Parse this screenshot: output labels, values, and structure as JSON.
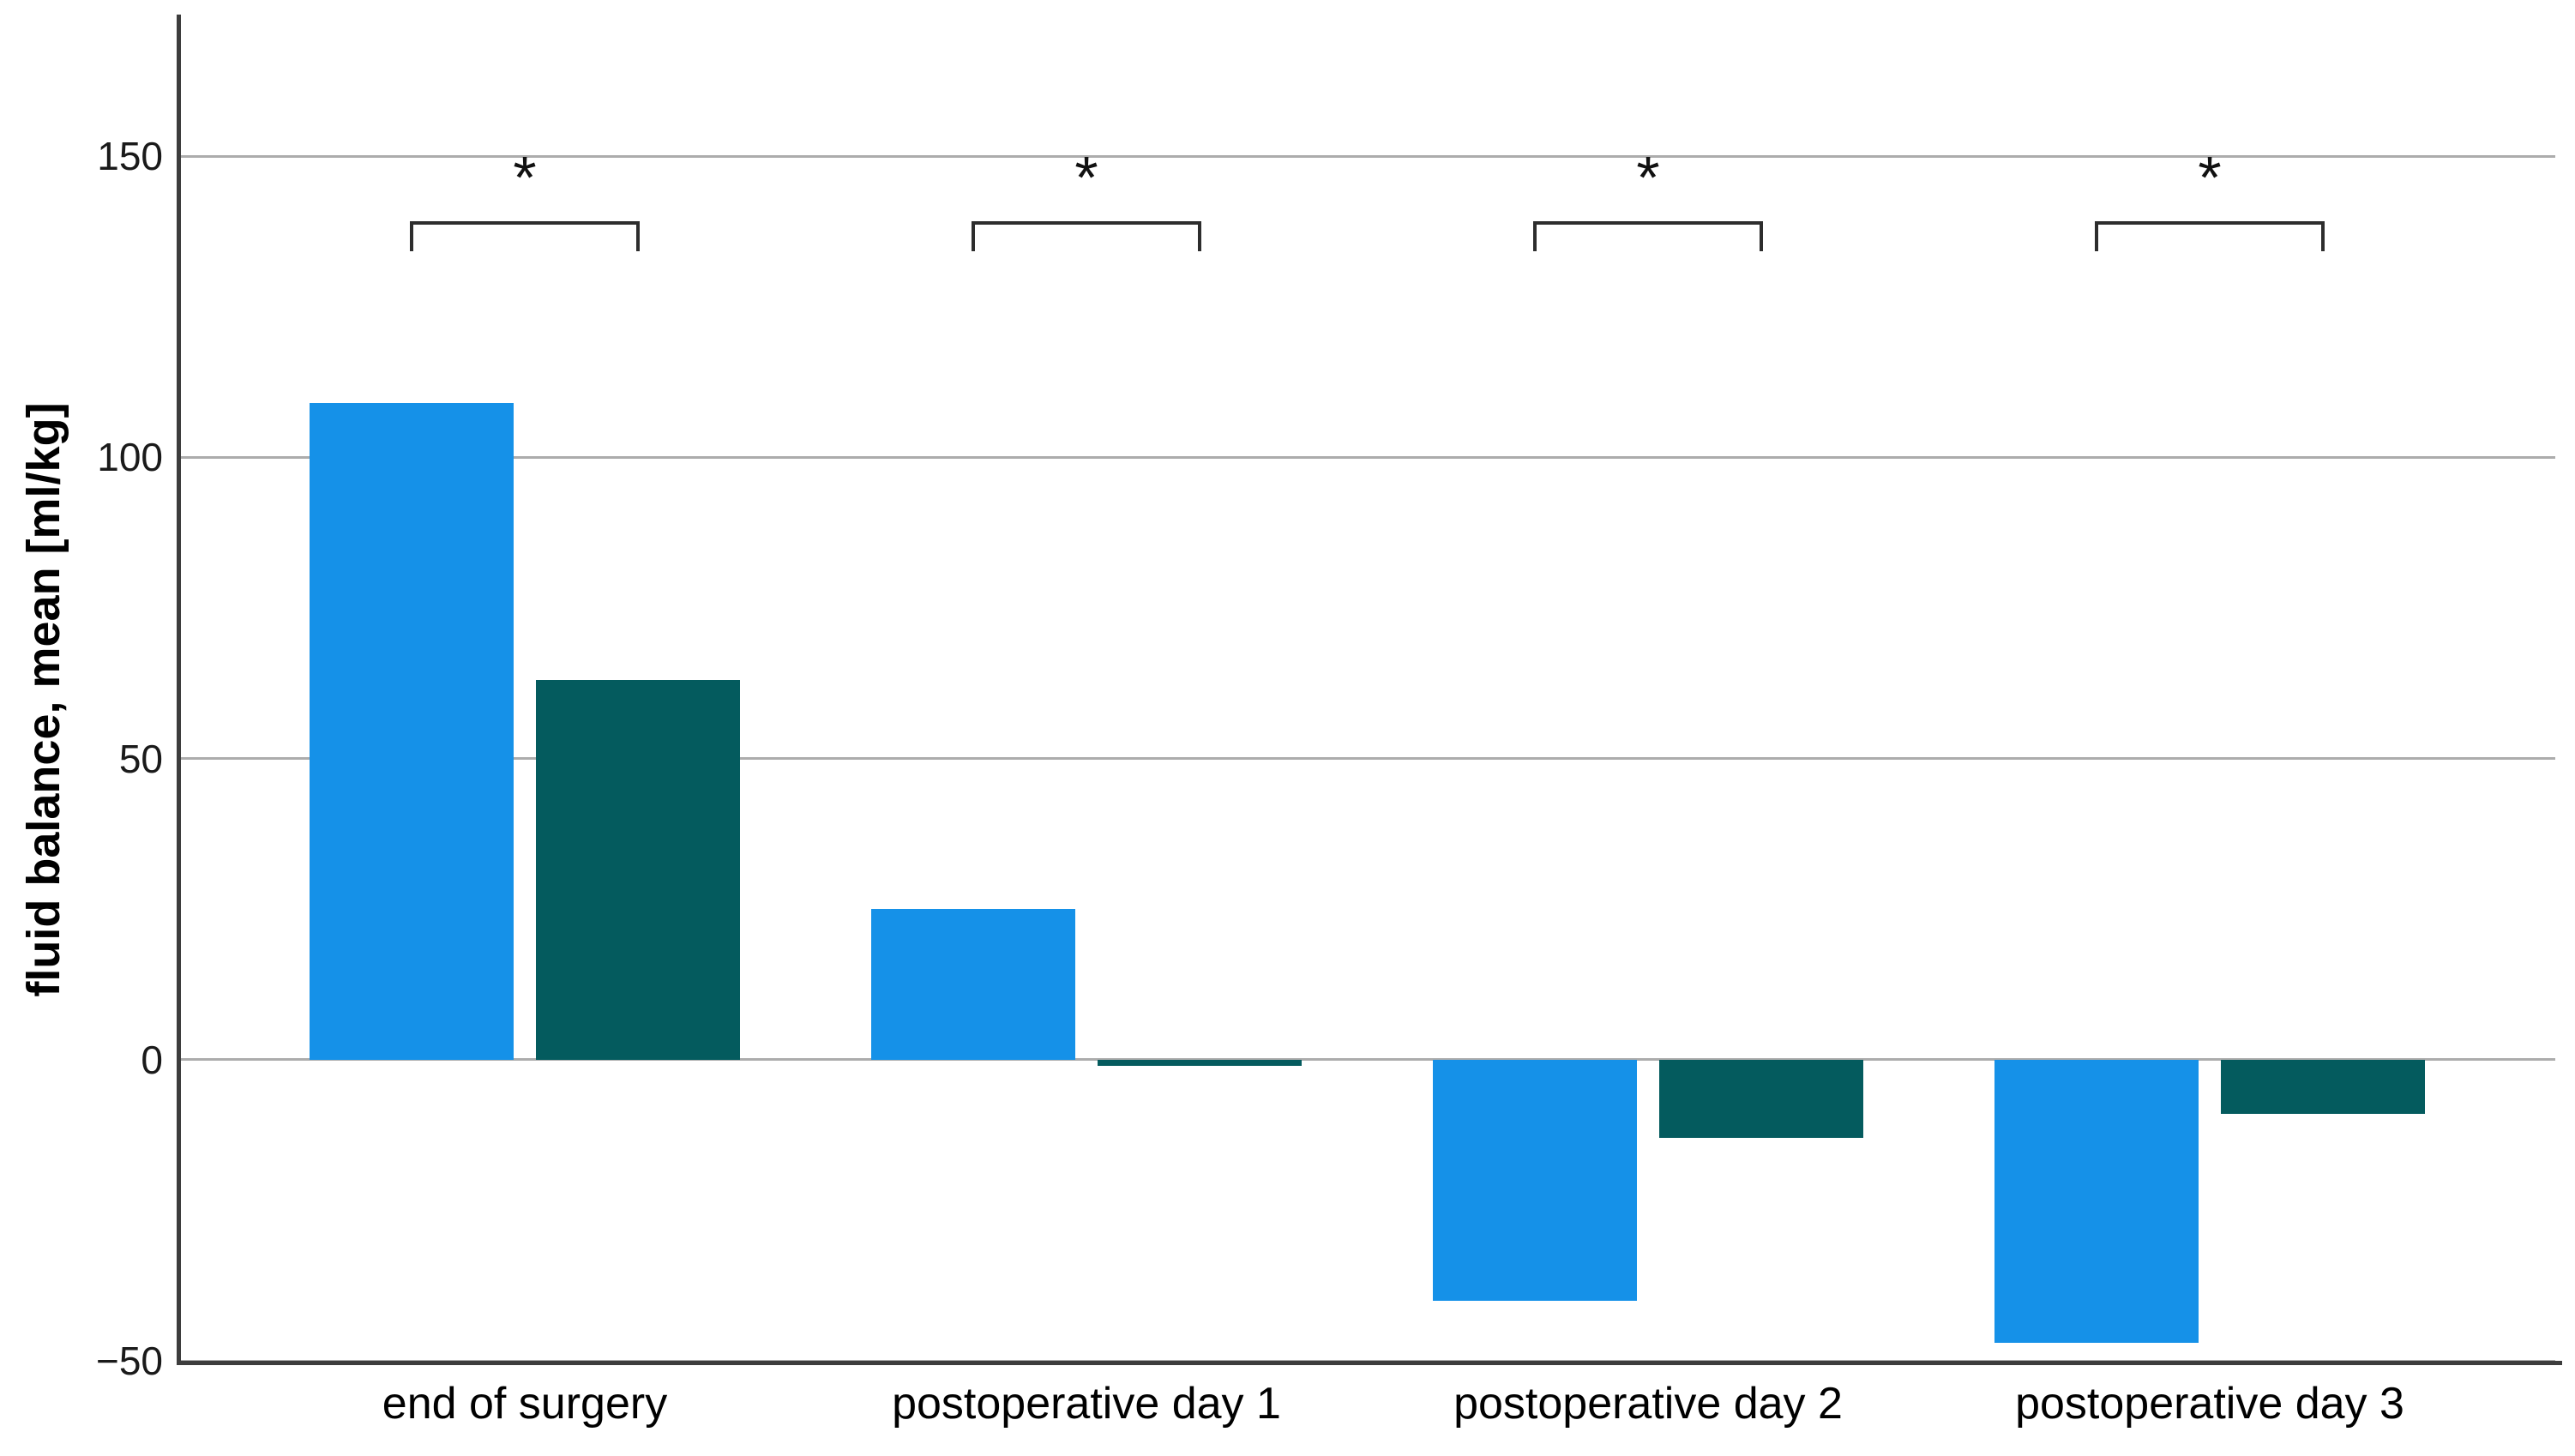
{
  "chart_data": {
    "type": "bar",
    "title": "",
    "xlabel": "",
    "ylabel": "fluid balance, mean [ml/kg]",
    "categories": [
      "end of surgery",
      "postoperative day 1",
      "postoperative day 2",
      "postoperative day 3"
    ],
    "series": [
      {
        "name": "blue",
        "color": "#1591E8",
        "values": [
          109,
          25,
          -40,
          -47
        ]
      },
      {
        "name": "teal",
        "color": "#045B5E",
        "values": [
          63,
          -1,
          -13,
          -9
        ]
      }
    ],
    "ylim": [
      -50,
      173.5
    ],
    "yticks": [
      150,
      100,
      50,
      0,
      -50
    ],
    "grid": true,
    "legend": "none",
    "annotations": [
      {
        "type": "significance-bracket",
        "group_index": 0,
        "label": "*"
      },
      {
        "type": "significance-bracket",
        "group_index": 1,
        "label": "*"
      },
      {
        "type": "significance-bracket",
        "group_index": 2,
        "label": "*"
      },
      {
        "type": "significance-bracket",
        "group_index": 3,
        "label": "*"
      }
    ]
  },
  "style_colors": {
    "gridline": "#ACACAC",
    "axis_frame": "#3d3d3d",
    "bracket": "#2d2d2d",
    "background": "#ffffff"
  }
}
